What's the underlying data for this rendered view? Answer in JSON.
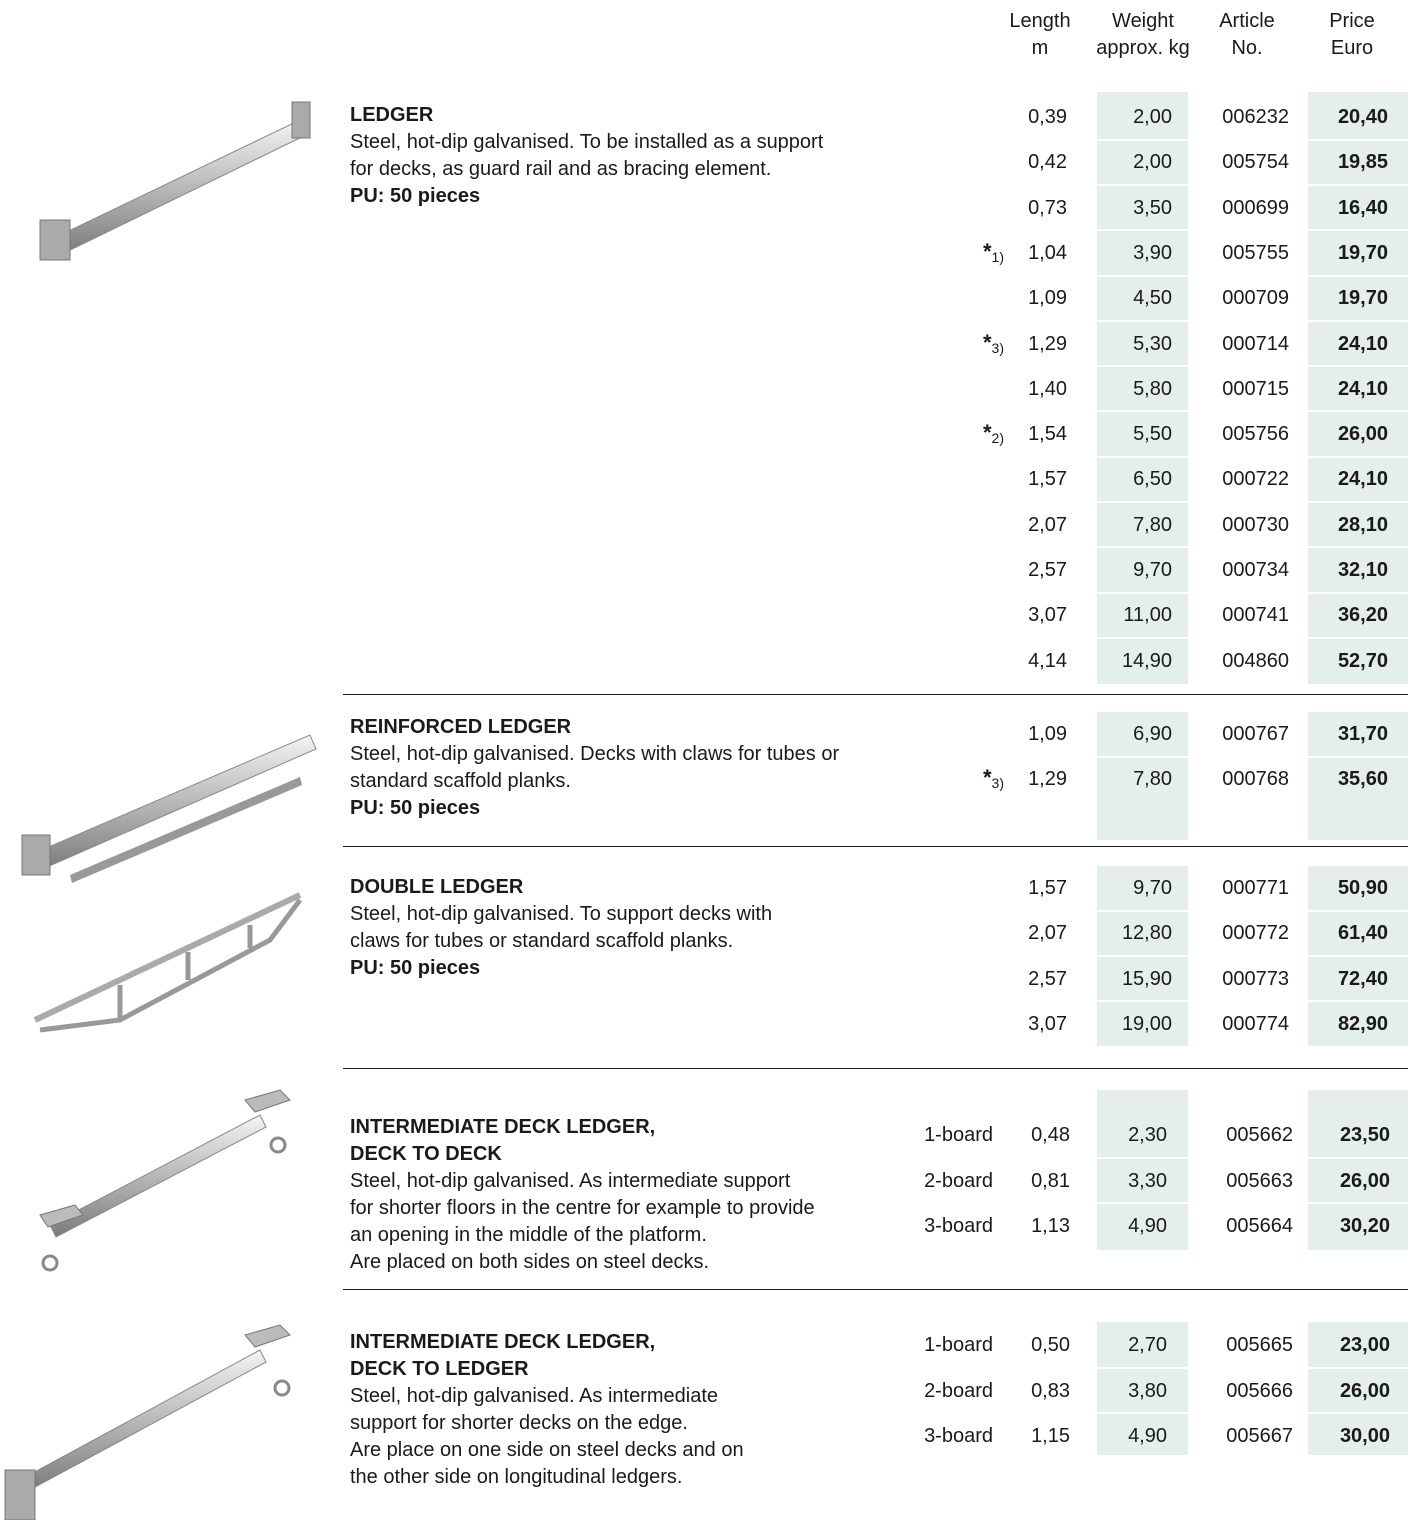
{
  "header": {
    "length": [
      "Length",
      "m"
    ],
    "weight": [
      "Weight",
      "approx. kg"
    ],
    "article": [
      "Article",
      "No."
    ],
    "price": [
      "Price",
      "Euro"
    ]
  },
  "sections": [
    {
      "title": [
        "LEDGER"
      ],
      "description": [
        "Steel, hot-dip galvanised. To be installed as a support",
        "for decks, as guard rail and as bracing element."
      ],
      "pu": "PU: 50 pieces",
      "rows": [
        {
          "length": "0,39",
          "weight": "2,00",
          "article": "006232",
          "price": "20,40"
        },
        {
          "length": "0,42",
          "weight": "2,00",
          "article": "005754",
          "price": "19,85"
        },
        {
          "length": "0,73",
          "weight": "3,50",
          "article": "000699",
          "price": "16,40"
        },
        {
          "star": "*",
          "note": "1)",
          "length": "1,04",
          "weight": "3,90",
          "article": "005755",
          "price": "19,70"
        },
        {
          "length": "1,09",
          "weight": "4,50",
          "article": "000709",
          "price": "19,70"
        },
        {
          "star": "*",
          "note": "3)",
          "length": "1,29",
          "weight": "5,30",
          "article": "000714",
          "price": "24,10"
        },
        {
          "length": "1,40",
          "weight": "5,80",
          "article": "000715",
          "price": "24,10"
        },
        {
          "star": "*",
          "note": "2)",
          "length": "1,54",
          "weight": "5,50",
          "article": "005756",
          "price": "26,00"
        },
        {
          "length": "1,57",
          "weight": "6,50",
          "article": "000722",
          "price": "24,10"
        },
        {
          "length": "2,07",
          "weight": "7,80",
          "article": "000730",
          "price": "28,10"
        },
        {
          "length": "2,57",
          "weight": "9,70",
          "article": "000734",
          "price": "32,10"
        },
        {
          "length": "3,07",
          "weight": "11,00",
          "article": "000741",
          "price": "36,20"
        },
        {
          "length": "4,14",
          "weight": "14,90",
          "article": "004860",
          "price": "52,70"
        }
      ]
    },
    {
      "title": [
        "REINFORCED LEDGER"
      ],
      "description": [
        "Steel, hot-dip galvanised. Decks with claws for tubes or",
        "standard scaffold planks."
      ],
      "pu": "PU: 50 pieces",
      "rows": [
        {
          "length": "1,09",
          "weight": "6,90",
          "article": "000767",
          "price": "31,70"
        },
        {
          "star": "*",
          "note": "3)",
          "length": "1,29",
          "weight": "7,80",
          "article": "000768",
          "price": "35,60"
        }
      ]
    },
    {
      "title": [
        "DOUBLE LEDGER"
      ],
      "description": [
        "Steel, hot-dip galvanised. To support decks with",
        "claws for tubes or standard scaffold planks."
      ],
      "pu": "PU: 50 pieces",
      "rows": [
        {
          "length": "1,57",
          "weight": "9,70",
          "article": "000771",
          "price": "50,90"
        },
        {
          "length": "2,07",
          "weight": "12,80",
          "article": "000772",
          "price": "61,40"
        },
        {
          "length": "2,57",
          "weight": "15,90",
          "article": "000773",
          "price": "72,40"
        },
        {
          "length": "3,07",
          "weight": "19,00",
          "article": "000774",
          "price": "82,90"
        }
      ]
    },
    {
      "title": [
        "INTERMEDIATE DECK LEDGER,",
        "DECK TO DECK"
      ],
      "description": [
        "Steel, hot-dip galvanised. As intermediate support",
        "for shorter floors in the centre for example to provide",
        "an opening in the middle of the platform.",
        "Are placed on both sides on steel decks."
      ],
      "rows": [
        {
          "board": "1-board",
          "length": "0,48",
          "weight": "2,30",
          "article": "005662",
          "price": "23,50"
        },
        {
          "board": "2-board",
          "length": "0,81",
          "weight": "3,30",
          "article": "005663",
          "price": "26,00"
        },
        {
          "board": "3-board",
          "length": "1,13",
          "weight": "4,90",
          "article": "005664",
          "price": "30,20"
        }
      ]
    },
    {
      "title": [
        "INTERMEDIATE DECK LEDGER,",
        "DECK TO LEDGER"
      ],
      "description": [
        "Steel, hot-dip galvanised. As intermediate",
        "support for shorter decks on the edge.",
        "Are place on one side on steel decks and on",
        "the other side on longitudinal ledgers."
      ],
      "rows": [
        {
          "board": "1-board",
          "length": "0,50",
          "weight": "2,70",
          "article": "005665",
          "price": "23,00"
        },
        {
          "board": "2-board",
          "length": "0,83",
          "weight": "3,80",
          "article": "005666",
          "price": "26,00"
        },
        {
          "board": "3-board",
          "length": "1,15",
          "weight": "4,90",
          "article": "005667",
          "price": "30,00"
        }
      ]
    }
  ]
}
